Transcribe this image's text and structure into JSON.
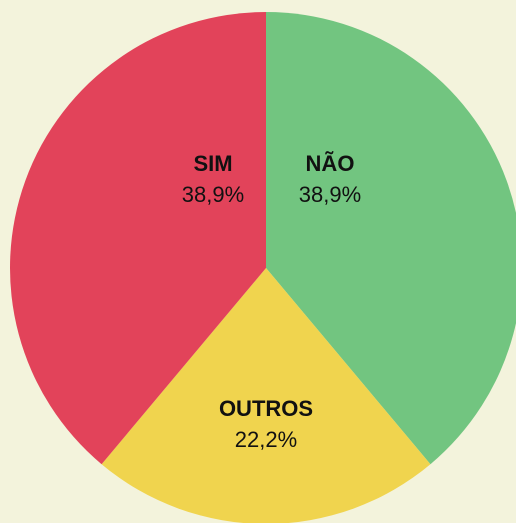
{
  "chart_data": {
    "type": "pie",
    "categories": [
      "NÃO",
      "OUTROS",
      "SIM"
    ],
    "values": [
      38.9,
      22.2,
      38.9
    ],
    "value_labels": [
      "38,9%",
      "22,2%",
      "38,9%"
    ],
    "colors": [
      "#72c580",
      "#f0d44e",
      "#e2435a"
    ]
  }
}
